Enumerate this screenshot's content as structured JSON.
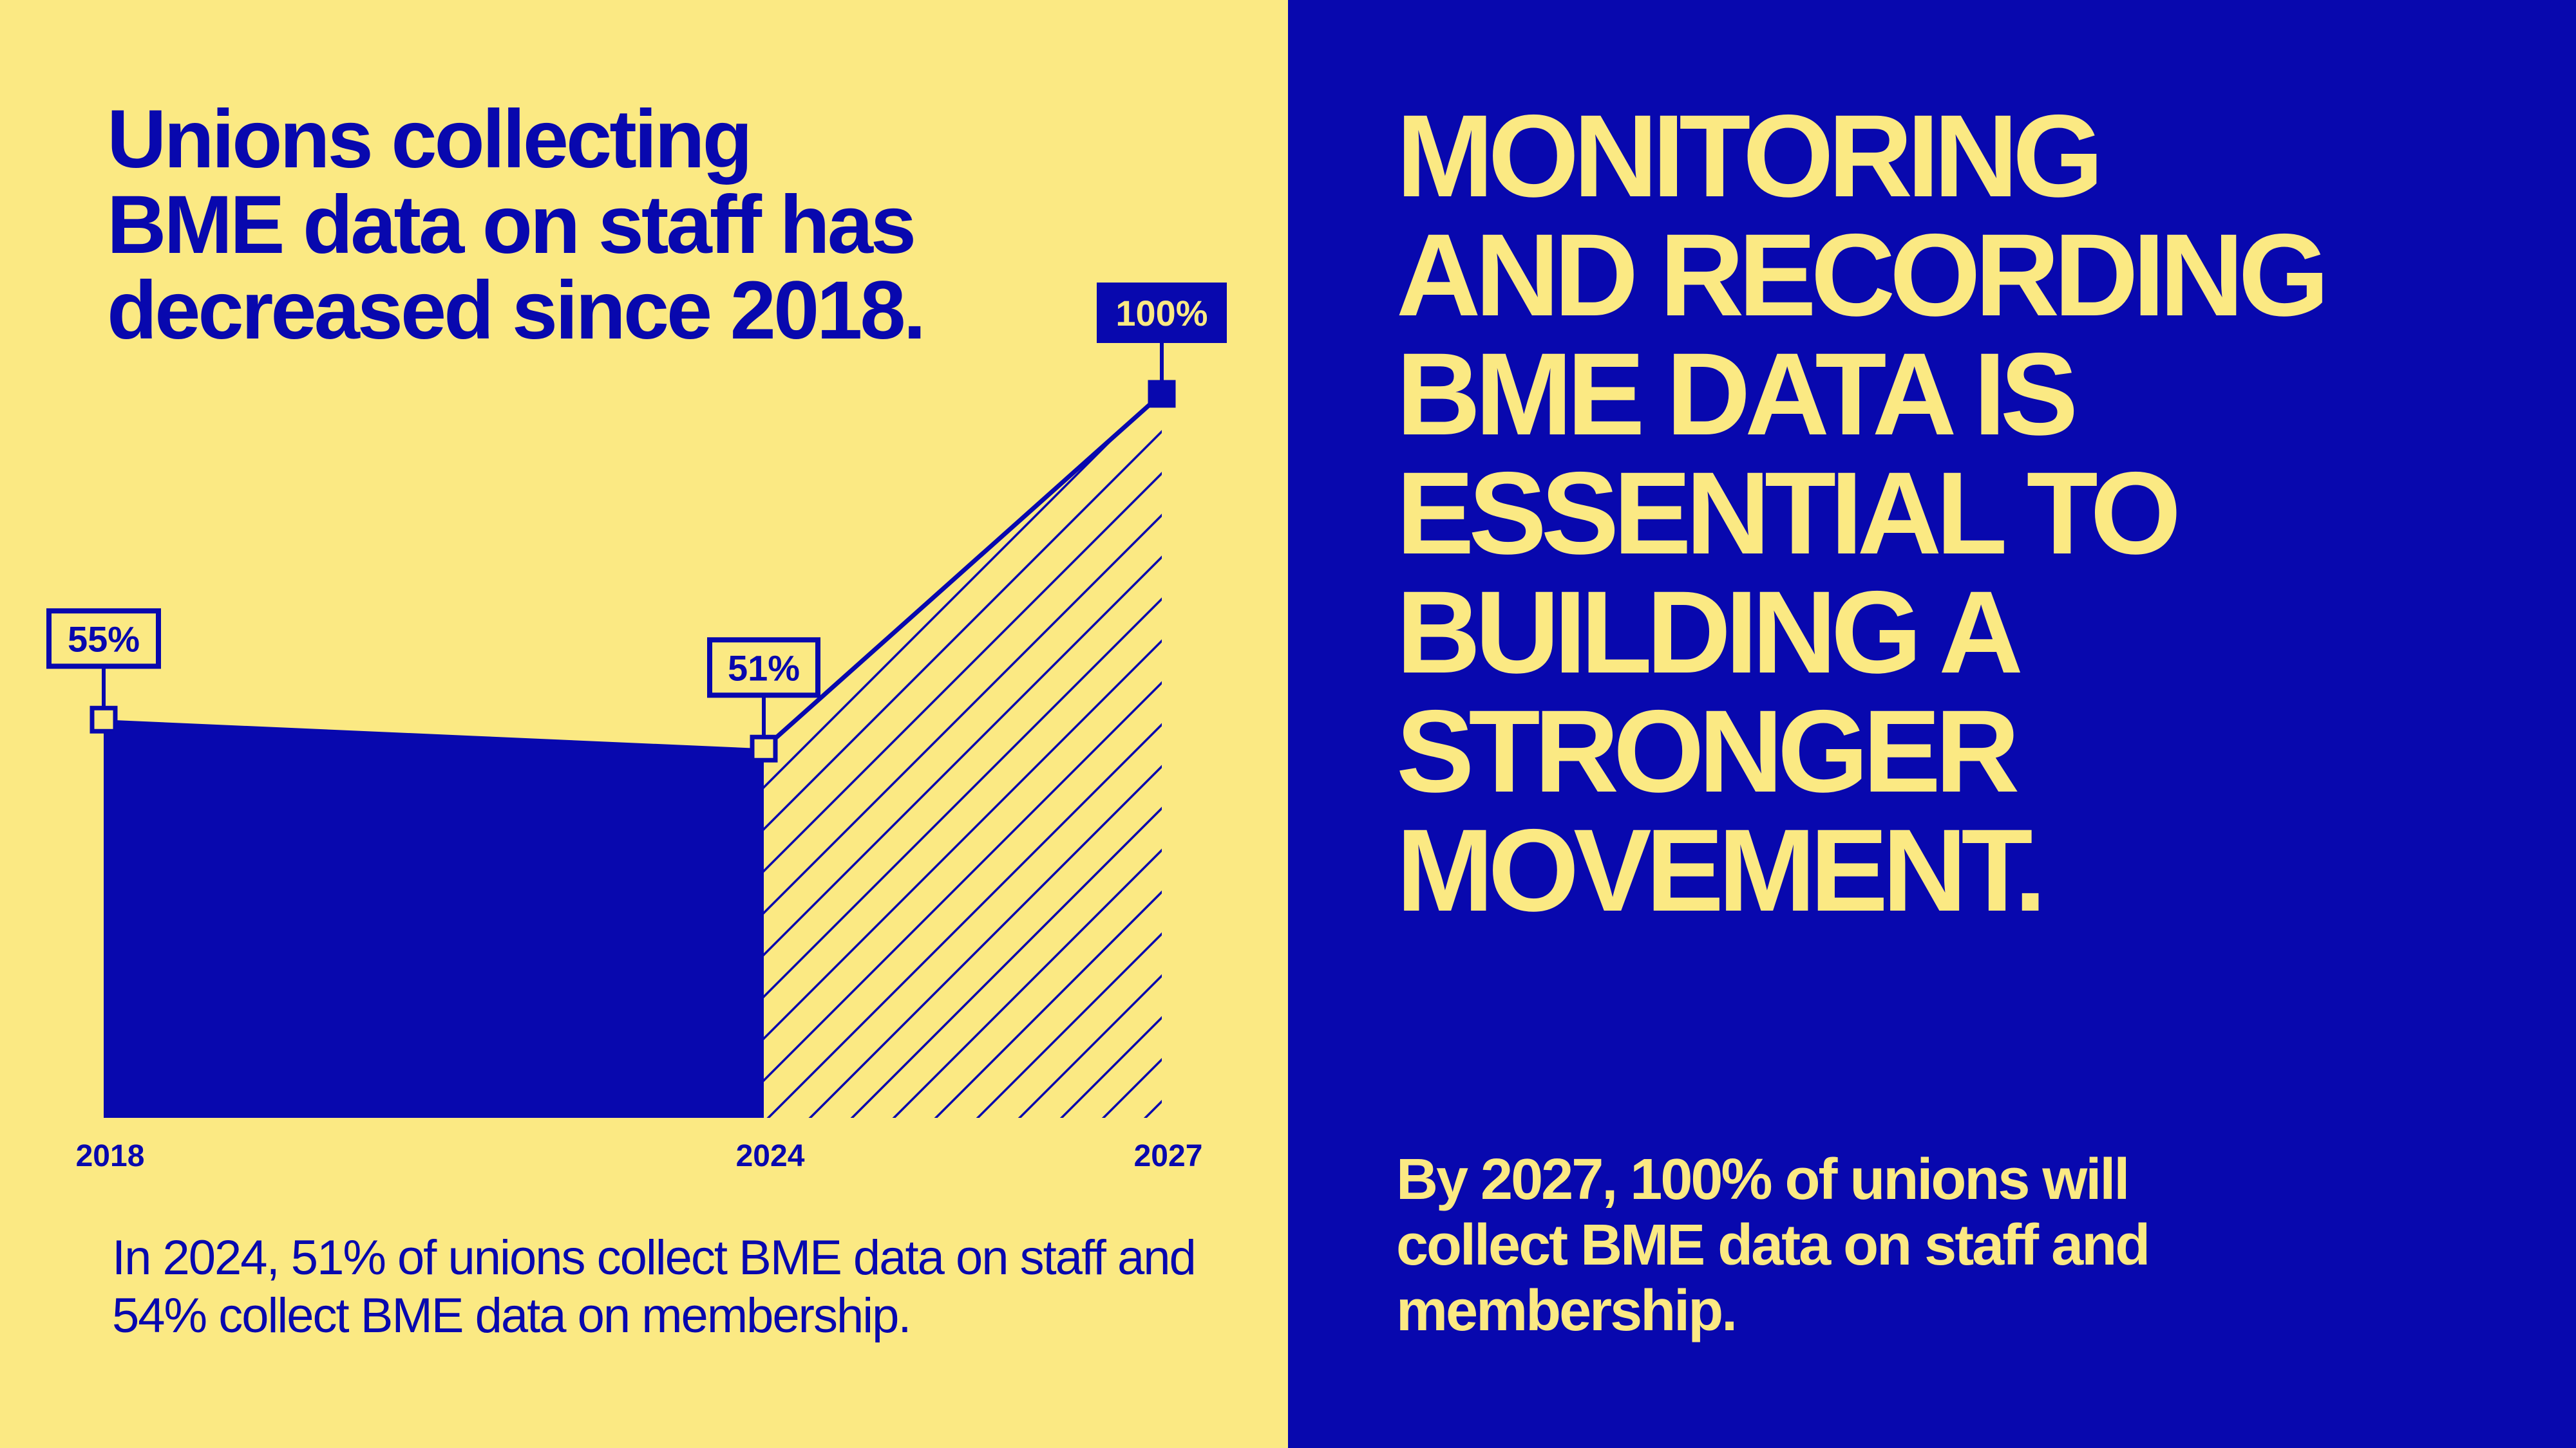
{
  "colors": {
    "yellow": "#FBE983",
    "blue": "#0808AE"
  },
  "left": {
    "title": "Unions collecting\nBME data on staff has\ndecreased since 2018.",
    "note": "In 2024, 51% of unions collect BME data on staff and 54% collect BME data on membership."
  },
  "right": {
    "headline": "MONITORING\nAND RECORDING\nBME DATA IS\nESSENTIAL TO\nBUILDING  A\nSTRONGER\nMOVEMENT.",
    "footer": "By 2027, 100% of unions will collect BME data on staff and membership."
  },
  "chart_data": {
    "type": "area",
    "x": [
      2018,
      2024,
      2027
    ],
    "tick_labels": [
      "2018",
      "2024",
      "2027"
    ],
    "values": [
      55,
      51,
      100
    ],
    "data_labels": [
      "55%",
      "51%",
      "100%"
    ],
    "segments": [
      {
        "from": 2018,
        "to": 2024,
        "style": "solid",
        "kind": "actual"
      },
      {
        "from": 2024,
        "to": 2027,
        "style": "hatched",
        "kind": "target"
      }
    ],
    "ylim": [
      0,
      100
    ],
    "grid": false,
    "title": "",
    "xlabel": "",
    "ylabel": ""
  }
}
